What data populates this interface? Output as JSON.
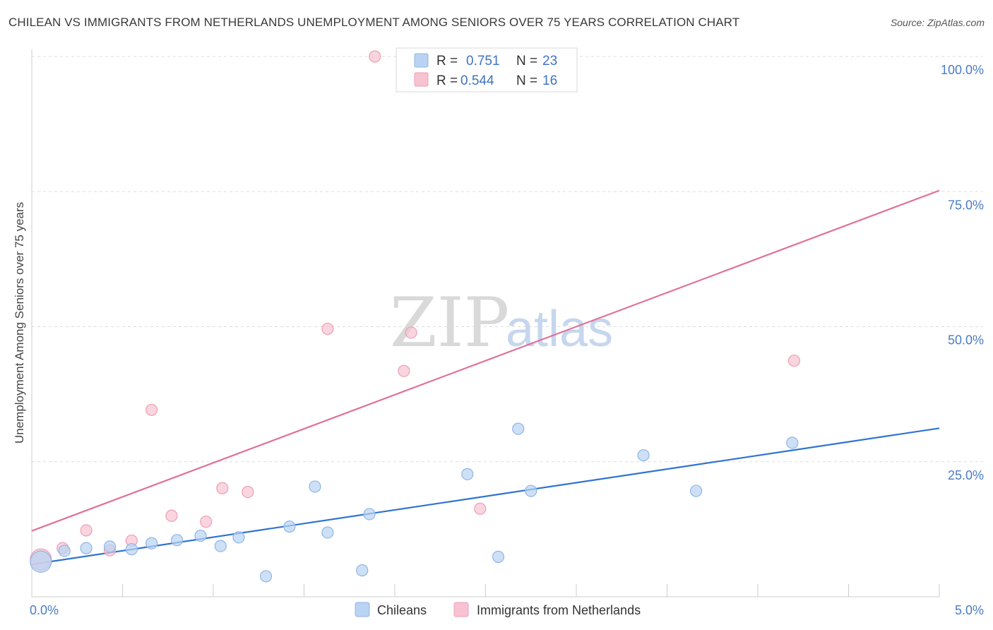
{
  "header": {
    "title": "CHILEAN VS IMMIGRANTS FROM NETHERLANDS UNEMPLOYMENT AMONG SENIORS OVER 75 YEARS CORRELATION CHART",
    "source": "Source: ZipAtlas.com"
  },
  "watermark": {
    "zip": "ZIP",
    "atlas": "atlas"
  },
  "colors": {
    "blue_fill": "#b9d3f2",
    "blue_stroke": "#8fb5e6",
    "blue_line": "#2f74d0",
    "pink_fill": "#f7c3d2",
    "pink_stroke": "#ee9db5",
    "pink_line": "#e0709a",
    "grid": "#dddddd",
    "tick_text": "#4a7cc4"
  },
  "legend": {
    "rows": [
      {
        "r_label": "R =",
        "r_value": "0.751",
        "n_label": "N =",
        "n_value": "23"
      },
      {
        "r_label": "R =",
        "r_value": "0.544",
        "n_label": "N =",
        "n_value": "16"
      }
    ]
  },
  "chart_data": {
    "type": "scatter",
    "title": "CHILEAN VS IMMIGRANTS FROM NETHERLANDS UNEMPLOYMENT AMONG SENIORS OVER 75 YEARS CORRELATION CHART",
    "xlabel": "",
    "ylabel": "Unemployment Among Seniors over 75 years",
    "xlim": [
      0,
      5
    ],
    "ylim": [
      0,
      100
    ],
    "x_tick_labels": [
      "0.0%",
      "5.0%"
    ],
    "y_ticks": [
      25,
      50,
      75,
      100
    ],
    "y_tick_labels": [
      "25.0%",
      "50.0%",
      "75.0%",
      "100.0%"
    ],
    "legend_position": "bottom-center",
    "series": [
      {
        "name": "Chileans",
        "color": "#b9d3f2",
        "line_color": "#2f74d0",
        "trend": {
          "x": [
            0,
            5
          ],
          "y": [
            6.0,
            31.2
          ]
        },
        "points": [
          {
            "x": 0.05,
            "y": 6.5,
            "big": true
          },
          {
            "x": 0.18,
            "y": 8.5
          },
          {
            "x": 0.3,
            "y": 9.0
          },
          {
            "x": 0.43,
            "y": 9.3
          },
          {
            "x": 0.55,
            "y": 8.8
          },
          {
            "x": 0.66,
            "y": 9.9
          },
          {
            "x": 0.8,
            "y": 10.5
          },
          {
            "x": 0.93,
            "y": 11.3
          },
          {
            "x": 1.04,
            "y": 9.4
          },
          {
            "x": 1.14,
            "y": 11.0
          },
          {
            "x": 1.29,
            "y": 3.8
          },
          {
            "x": 1.42,
            "y": 13.0
          },
          {
            "x": 1.56,
            "y": 20.4
          },
          {
            "x": 1.63,
            "y": 11.9
          },
          {
            "x": 1.82,
            "y": 4.9
          },
          {
            "x": 1.86,
            "y": 15.3
          },
          {
            "x": 2.4,
            "y": 22.7
          },
          {
            "x": 2.57,
            "y": 7.4
          },
          {
            "x": 2.68,
            "y": 31.1
          },
          {
            "x": 2.75,
            "y": 19.6
          },
          {
            "x": 3.37,
            "y": 26.2
          },
          {
            "x": 3.66,
            "y": 19.6
          },
          {
            "x": 4.19,
            "y": 28.5
          }
        ]
      },
      {
        "name": "Immigrants from Netherlands",
        "color": "#f7c3d2",
        "line_color": "#e0709a",
        "trend": {
          "x": [
            0,
            5
          ],
          "y": [
            12.2,
            75.2
          ]
        },
        "points": [
          {
            "x": 0.05,
            "y": 6.9,
            "big": true
          },
          {
            "x": 0.17,
            "y": 9.0
          },
          {
            "x": 0.3,
            "y": 12.3
          },
          {
            "x": 0.43,
            "y": 8.6
          },
          {
            "x": 0.55,
            "y": 10.4
          },
          {
            "x": 0.66,
            "y": 34.6
          },
          {
            "x": 0.77,
            "y": 15.0
          },
          {
            "x": 0.96,
            "y": 13.9
          },
          {
            "x": 1.05,
            "y": 20.1
          },
          {
            "x": 1.19,
            "y": 19.4
          },
          {
            "x": 1.63,
            "y": 49.6
          },
          {
            "x": 1.89,
            "y": 100.0
          },
          {
            "x": 2.05,
            "y": 41.8
          },
          {
            "x": 2.09,
            "y": 48.9
          },
          {
            "x": 2.47,
            "y": 16.3
          },
          {
            "x": 4.2,
            "y": 43.7
          }
        ]
      }
    ]
  }
}
